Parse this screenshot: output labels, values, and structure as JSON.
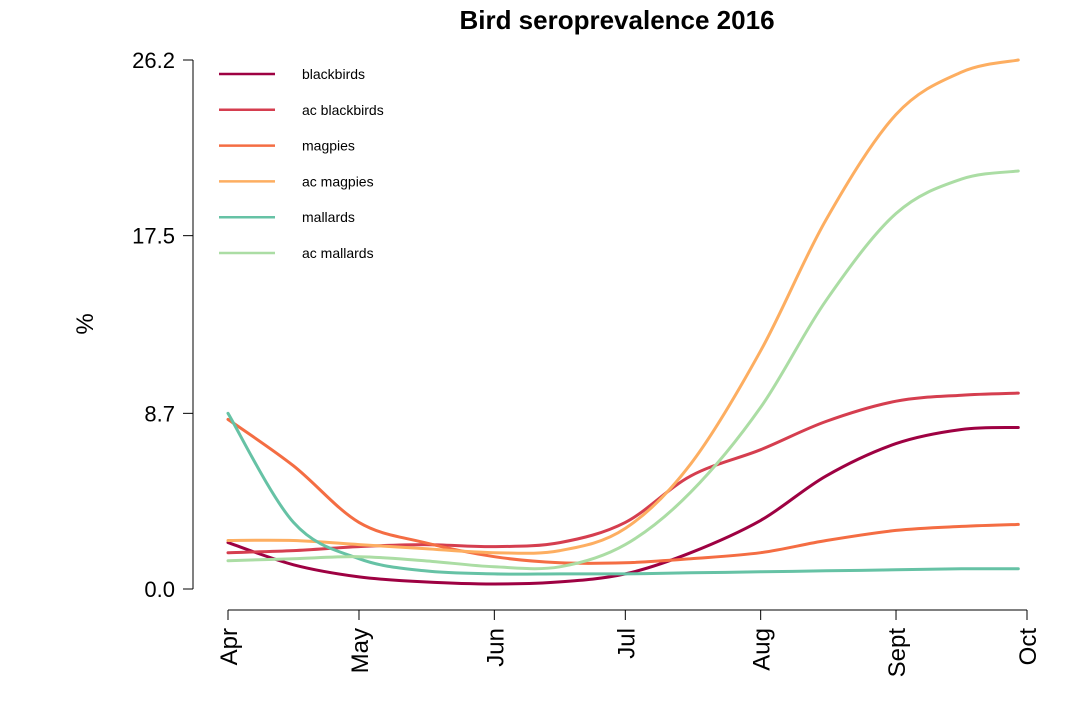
{
  "chart_data": {
    "type": "line",
    "title": "Bird seroprevalence 2016",
    "xlabel": "",
    "ylabel": "%",
    "x_ticks": [
      "Apr",
      "May",
      "Jun",
      "Jul",
      "Aug",
      "Sept",
      "Oct"
    ],
    "y_ticks": [
      "0.0",
      "8.7",
      "17.5",
      "26.2"
    ],
    "ylim": [
      0,
      26.2
    ],
    "xlim": [
      "2016-04-01",
      "2016-10-01"
    ],
    "legend_position": "top-left",
    "x": [
      "2016-04-01",
      "2016-04-16",
      "2016-05-01",
      "2016-05-16",
      "2016-06-01",
      "2016-06-16",
      "2016-07-01",
      "2016-07-16",
      "2016-08-01",
      "2016-08-16",
      "2016-09-01",
      "2016-09-16",
      "2016-09-29"
    ],
    "series": [
      {
        "name": "blackbirds",
        "color": "#9e0142",
        "values": [
          2.3,
          1.2,
          0.6,
          0.35,
          0.25,
          0.35,
          0.75,
          1.8,
          3.4,
          5.6,
          7.2,
          7.9,
          8.0
        ]
      },
      {
        "name": "ac blackbirds",
        "color": "#d53e4f",
        "values": [
          1.8,
          1.9,
          2.1,
          2.2,
          2.1,
          2.3,
          3.3,
          5.6,
          6.9,
          8.3,
          9.3,
          9.6,
          9.7
        ]
      },
      {
        "name": "magpies",
        "color": "#f46d43",
        "values": [
          8.4,
          6.1,
          3.3,
          2.3,
          1.6,
          1.3,
          1.3,
          1.5,
          1.8,
          2.4,
          2.9,
          3.1,
          3.2
        ]
      },
      {
        "name": "ac magpies",
        "color": "#fdae61",
        "values": [
          2.4,
          2.4,
          2.2,
          2.0,
          1.8,
          1.9,
          3.0,
          6.2,
          11.8,
          18.3,
          23.5,
          25.6,
          26.2
        ]
      },
      {
        "name": "mallards",
        "color": "#66c2a5",
        "values": [
          8.7,
          3.3,
          1.5,
          0.9,
          0.75,
          0.75,
          0.75,
          0.8,
          0.85,
          0.9,
          0.95,
          1.0,
          1.0
        ]
      },
      {
        "name": "ac mallards",
        "color": "#abdda4",
        "values": [
          1.4,
          1.5,
          1.6,
          1.4,
          1.1,
          1.1,
          2.2,
          4.8,
          9.0,
          14.3,
          18.6,
          20.3,
          20.7
        ]
      }
    ]
  }
}
